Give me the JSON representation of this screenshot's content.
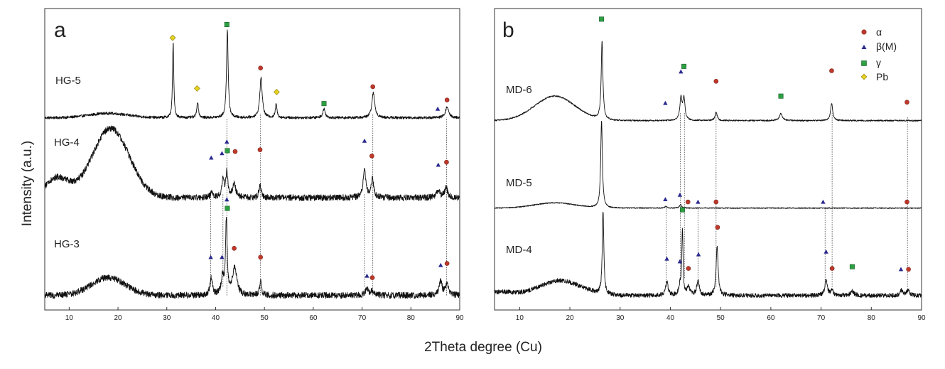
{
  "y_axis_title": "Intensity (a.u.)",
  "x_axis_title": "2Theta degree (Cu)",
  "legend": {
    "items": [
      {
        "key": "alpha",
        "label": "α",
        "marker": "circle",
        "color": "#c0392b"
      },
      {
        "key": "beta",
        "label": "β(M)",
        "marker": "triangle",
        "color": "#2a2a8f"
      },
      {
        "key": "gamma",
        "label": "γ",
        "marker": "square",
        "color": "#2ea043"
      },
      {
        "key": "pb",
        "label": "Pb",
        "marker": "diamond",
        "color": "#e5d21f"
      }
    ]
  },
  "chart_data": [
    {
      "type": "line",
      "panel": "a",
      "xlim": [
        5,
        90
      ],
      "xticks": [
        10,
        20,
        30,
        40,
        50,
        60,
        70,
        80,
        90
      ],
      "xlabel": "2Theta degree (Cu)",
      "ylabel": "Intensity (a.u.)",
      "series": [
        {
          "name": "HG-5",
          "offset": 2.0,
          "humps": [
            {
              "c": 18,
              "w": 4,
              "h": 0.05
            }
          ],
          "peaks": [
            {
              "x": 31.3,
              "h": 0.85,
              "w": 0.15,
              "m": "pb"
            },
            {
              "x": 36.3,
              "h": 0.18,
              "w": 0.2,
              "m": "pb"
            },
            {
              "x": 42.4,
              "h": 1.0,
              "w": 0.2,
              "m": "gamma"
            },
            {
              "x": 49.3,
              "h": 0.45,
              "w": 0.3,
              "m": "alpha"
            },
            {
              "x": 52.4,
              "h": 0.15,
              "w": 0.2,
              "m": "pb"
            },
            {
              "x": 62.2,
              "h": 0.1,
              "w": 0.3,
              "m": "gamma"
            },
            {
              "x": 72.3,
              "h": 0.28,
              "w": 0.35,
              "m": "alpha"
            },
            {
              "x": 85.5,
              "h": 0.0,
              "w": 0.3,
              "m": "beta"
            },
            {
              "x": 87.4,
              "h": 0.12,
              "w": 0.4,
              "m": "alpha"
            }
          ],
          "noise": 0.015
        },
        {
          "name": "HG-4",
          "offset": 1.1,
          "humps": [
            {
              "c": 7.5,
              "w": 2.4,
              "h": 0.22
            },
            {
              "c": 18.5,
              "w": 3.8,
              "h": 0.78
            }
          ],
          "peaks": [
            {
              "x": 39.2,
              "h": 0.05,
              "w": 0.3,
              "m": "beta"
            },
            {
              "x": 41.5,
              "h": 0.2,
              "w": 0.3,
              "m": "beta"
            },
            {
              "x": 42.3,
              "h": 0.28,
              "w": 0.25,
              "m": "beta"
            },
            {
              "x": 43.8,
              "h": 0.15,
              "w": 0.4,
              "m": "alpha"
            },
            {
              "x": 49.1,
              "h": 0.15,
              "w": 0.25,
              "m": "alpha"
            },
            {
              "x": 70.5,
              "h": 0.3,
              "w": 0.35,
              "m": "beta"
            },
            {
              "x": 72.1,
              "h": 0.2,
              "w": 0.3,
              "m": "alpha"
            },
            {
              "x": 85.6,
              "h": 0.09,
              "w": 0.35,
              "m": "beta"
            },
            {
              "x": 87.2,
              "h": 0.12,
              "w": 0.35,
              "m": "alpha"
            }
          ],
          "noise": 0.035
        },
        {
          "name": "HG-3",
          "offset": 0.0,
          "humps": [
            {
              "c": 18,
              "w": 3.5,
              "h": 0.2
            }
          ],
          "peaks": [
            {
              "x": 39.1,
              "h": 0.2,
              "w": 0.3,
              "m": "beta"
            },
            {
              "x": 41.4,
              "h": 0.2,
              "w": 0.3,
              "m": "beta"
            },
            {
              "x": 42.2,
              "h": 0.85,
              "w": 0.2,
              "m": "beta"
            },
            {
              "x": 43.9,
              "h": 0.32,
              "w": 0.5,
              "m": "alpha"
            },
            {
              "x": 49.2,
              "h": 0.16,
              "w": 0.25,
              "m": "alpha"
            },
            {
              "x": 71.0,
              "h": 0.07,
              "w": 0.4,
              "m": "beta"
            },
            {
              "x": 72.1,
              "h": 0.05,
              "w": 0.3,
              "m": "alpha"
            },
            {
              "x": 86.1,
              "h": 0.16,
              "w": 0.35,
              "m": "beta"
            },
            {
              "x": 87.4,
              "h": 0.14,
              "w": 0.35,
              "m": "alpha"
            }
          ],
          "noise": 0.035
        }
      ],
      "markers": [
        {
          "x": 31.2,
          "y": 2.9,
          "m": "pb"
        },
        {
          "x": 36.2,
          "y": 2.33,
          "m": "pb"
        },
        {
          "x": 42.3,
          "y": 3.05,
          "m": "gamma"
        },
        {
          "x": 49.2,
          "y": 2.56,
          "m": "alpha"
        },
        {
          "x": 52.5,
          "y": 2.29,
          "m": "pb"
        },
        {
          "x": 62.2,
          "y": 2.16,
          "m": "gamma"
        },
        {
          "x": 72.2,
          "y": 2.35,
          "m": "alpha"
        },
        {
          "x": 85.5,
          "y": 2.1,
          "m": "beta"
        },
        {
          "x": 87.4,
          "y": 2.2,
          "m": "alpha"
        },
        {
          "x": 39.1,
          "y": 1.55,
          "m": "beta"
        },
        {
          "x": 41.3,
          "y": 1.6,
          "m": "beta"
        },
        {
          "x": 42.3,
          "y": 1.73,
          "m": "beta"
        },
        {
          "x": 42.4,
          "y": 1.63,
          "m": "gamma"
        },
        {
          "x": 44.0,
          "y": 1.62,
          "m": "alpha"
        },
        {
          "x": 49.1,
          "y": 1.64,
          "m": "alpha"
        },
        {
          "x": 70.5,
          "y": 1.74,
          "m": "beta"
        },
        {
          "x": 72.0,
          "y": 1.57,
          "m": "alpha"
        },
        {
          "x": 85.6,
          "y": 1.47,
          "m": "beta"
        },
        {
          "x": 87.3,
          "y": 1.5,
          "m": "alpha"
        },
        {
          "x": 39.0,
          "y": 0.43,
          "m": "beta"
        },
        {
          "x": 41.3,
          "y": 0.43,
          "m": "beta"
        },
        {
          "x": 42.3,
          "y": 1.08,
          "m": "beta"
        },
        {
          "x": 42.4,
          "y": 0.98,
          "m": "gamma"
        },
        {
          "x": 43.8,
          "y": 0.53,
          "m": "alpha"
        },
        {
          "x": 49.2,
          "y": 0.43,
          "m": "alpha"
        },
        {
          "x": 71.0,
          "y": 0.22,
          "m": "beta"
        },
        {
          "x": 72.1,
          "y": 0.2,
          "m": "alpha"
        },
        {
          "x": 86.1,
          "y": 0.34,
          "m": "beta"
        },
        {
          "x": 87.4,
          "y": 0.36,
          "m": "alpha"
        }
      ],
      "guides": [
        {
          "x": 42.3,
          "y1": 0.0,
          "y2": 2.0
        },
        {
          "x": 49.2,
          "y1": 0.0,
          "y2": 2.05
        },
        {
          "x": 72.2,
          "y1": 0.0,
          "y2": 2.05
        },
        {
          "x": 87.3,
          "y1": 0.0,
          "y2": 2.0
        },
        {
          "x": 39.0,
          "y1": 0.1,
          "y2": 1.15
        },
        {
          "x": 41.5,
          "y1": 0.1,
          "y2": 1.15
        },
        {
          "x": 70.5,
          "y1": 0.1,
          "y2": 1.15
        }
      ],
      "ylim": [
        -0.1,
        3.15
      ]
    },
    {
      "type": "line",
      "panel": "b",
      "xlim": [
        5,
        90
      ],
      "xticks": [
        10,
        20,
        30,
        40,
        50,
        60,
        70,
        80,
        90
      ],
      "xlabel": "2Theta degree (Cu)",
      "ylabel": "Intensity (a.u.)",
      "series": [
        {
          "name": "MD-6",
          "offset": 2.0,
          "humps": [
            {
              "c": 17,
              "w": 4,
              "h": 0.28
            }
          ],
          "peaks": [
            {
              "x": 26.4,
              "h": 0.9,
              "w": 0.2,
              "m": "gamma"
            },
            {
              "x": 39.0,
              "h": 0.0,
              "w": 0.3,
              "m": "beta"
            },
            {
              "x": 42.1,
              "h": 0.25,
              "w": 0.25,
              "m": "beta"
            },
            {
              "x": 42.7,
              "h": 0.25,
              "w": 0.25,
              "m": "gamma"
            },
            {
              "x": 49.1,
              "h": 0.1,
              "w": 0.25,
              "m": "alpha"
            },
            {
              "x": 62.0,
              "h": 0.08,
              "w": 0.35,
              "m": "gamma"
            },
            {
              "x": 72.1,
              "h": 0.2,
              "w": 0.25,
              "m": "alpha"
            },
            {
              "x": 87.1,
              "h": 0.0,
              "w": 0.3,
              "m": "alpha"
            }
          ],
          "noise": 0.008
        },
        {
          "name": "MD-5",
          "offset": 1.0,
          "humps": [
            {
              "c": 17,
              "w": 4,
              "h": 0.06
            }
          ],
          "peaks": [
            {
              "x": 26.3,
              "h": 1.0,
              "w": 0.2,
              "m": "gamma"
            },
            {
              "x": 39.1,
              "h": 0.02,
              "w": 0.25,
              "m": "beta"
            },
            {
              "x": 42.0,
              "h": 0.04,
              "w": 0.25,
              "m": "beta"
            },
            {
              "x": 43.6,
              "h": 0.0,
              "w": 0.25,
              "m": "alpha"
            },
            {
              "x": 45.5,
              "h": 0.0,
              "w": 0.25,
              "m": "beta"
            },
            {
              "x": 49.1,
              "h": 0.0,
              "w": 0.25,
              "m": "alpha"
            },
            {
              "x": 70.4,
              "h": 0.0,
              "w": 0.25,
              "m": "beta"
            },
            {
              "x": 87.1,
              "h": 0.0,
              "w": 0.25,
              "m": "alpha"
            }
          ],
          "noise": 0.006
        },
        {
          "name": "MD-4",
          "offset": 0.0,
          "humps": [
            {
              "c": 18,
              "w": 4.2,
              "h": 0.17
            },
            {
              "c": 6,
              "w": 2.5,
              "h": 0.04
            }
          ],
          "peaks": [
            {
              "x": 26.6,
              "h": 0.95,
              "w": 0.18,
              "m": "gamma"
            },
            {
              "x": 39.3,
              "h": 0.15,
              "w": 0.3,
              "m": "beta"
            },
            {
              "x": 41.9,
              "h": 0.1,
              "w": 0.3,
              "m": "beta"
            },
            {
              "x": 42.4,
              "h": 0.75,
              "w": 0.15,
              "m": "gamma"
            },
            {
              "x": 43.6,
              "h": 0.1,
              "w": 0.3,
              "m": "alpha"
            },
            {
              "x": 45.5,
              "h": 0.17,
              "w": 0.3,
              "m": "beta"
            },
            {
              "x": 49.3,
              "h": 0.55,
              "w": 0.25,
              "m": "alpha"
            },
            {
              "x": 71.0,
              "h": 0.18,
              "w": 0.3,
              "m": "beta"
            },
            {
              "x": 72.2,
              "h": 0.06,
              "w": 0.3,
              "m": "alpha"
            },
            {
              "x": 76.2,
              "h": 0.05,
              "w": 0.4,
              "m": "gamma"
            },
            {
              "x": 86.0,
              "h": 0.06,
              "w": 0.3,
              "m": "beta"
            },
            {
              "x": 87.3,
              "h": 0.06,
              "w": 0.3,
              "m": "alpha"
            }
          ],
          "noise": 0.025
        }
      ],
      "markers": [
        {
          "x": 26.3,
          "y": 3.16,
          "m": "gamma"
        },
        {
          "x": 39.0,
          "y": 2.2,
          "m": "beta"
        },
        {
          "x": 42.1,
          "y": 2.56,
          "m": "beta"
        },
        {
          "x": 42.7,
          "y": 2.62,
          "m": "gamma"
        },
        {
          "x": 49.1,
          "y": 2.45,
          "m": "alpha"
        },
        {
          "x": 62.0,
          "y": 2.28,
          "m": "gamma"
        },
        {
          "x": 72.1,
          "y": 2.57,
          "m": "alpha"
        },
        {
          "x": 87.1,
          "y": 2.21,
          "m": "alpha"
        },
        {
          "x": 39.0,
          "y": 1.1,
          "m": "beta"
        },
        {
          "x": 41.9,
          "y": 1.15,
          "m": "beta"
        },
        {
          "x": 43.5,
          "y": 1.07,
          "m": "alpha"
        },
        {
          "x": 45.5,
          "y": 1.07,
          "m": "beta"
        },
        {
          "x": 49.1,
          "y": 1.07,
          "m": "alpha"
        },
        {
          "x": 70.4,
          "y": 1.07,
          "m": "beta"
        },
        {
          "x": 87.1,
          "y": 1.07,
          "m": "alpha"
        },
        {
          "x": 39.3,
          "y": 0.42,
          "m": "beta"
        },
        {
          "x": 41.9,
          "y": 0.39,
          "m": "beta"
        },
        {
          "x": 42.4,
          "y": 0.98,
          "m": "gamma"
        },
        {
          "x": 43.6,
          "y": 0.31,
          "m": "alpha"
        },
        {
          "x": 45.6,
          "y": 0.47,
          "m": "beta"
        },
        {
          "x": 49.4,
          "y": 0.78,
          "m": "alpha"
        },
        {
          "x": 71.0,
          "y": 0.5,
          "m": "beta"
        },
        {
          "x": 72.2,
          "y": 0.31,
          "m": "alpha"
        },
        {
          "x": 76.2,
          "y": 0.33,
          "m": "gamma"
        },
        {
          "x": 85.9,
          "y": 0.3,
          "m": "beta"
        },
        {
          "x": 87.4,
          "y": 0.3,
          "m": "alpha"
        }
      ],
      "guides": [
        {
          "x": 42.0,
          "y1": 0.2,
          "y2": 2.1
        },
        {
          "x": 42.8,
          "y1": 0.2,
          "y2": 2.1
        },
        {
          "x": 49.1,
          "y1": 0.1,
          "y2": 2.1
        },
        {
          "x": 72.2,
          "y1": 0.1,
          "y2": 2.1
        },
        {
          "x": 87.2,
          "y1": 0.1,
          "y2": 2.05
        },
        {
          "x": 39.2,
          "y1": 0.1,
          "y2": 1.0
        },
        {
          "x": 45.5,
          "y1": 0.1,
          "y2": 1.0
        },
        {
          "x": 70.8,
          "y1": 0.1,
          "y2": 1.0
        }
      ],
      "ylim": [
        -0.1,
        3.2
      ]
    }
  ]
}
